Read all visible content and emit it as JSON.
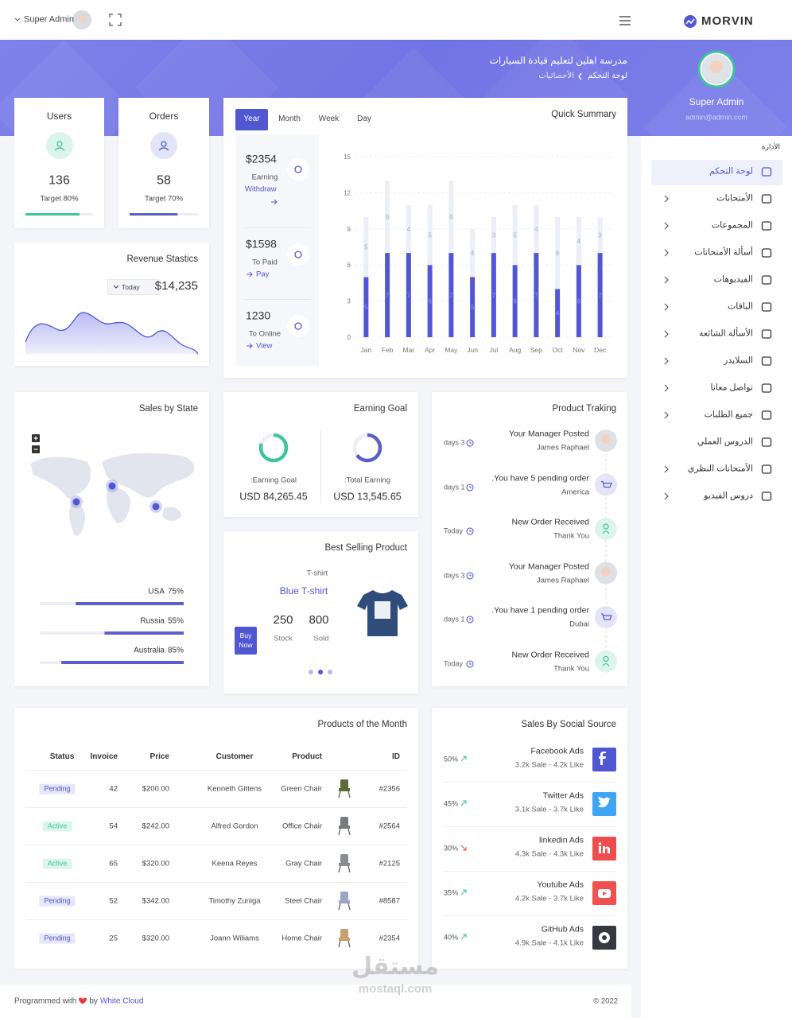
{
  "topbar": {
    "user": "Super Admin",
    "brand": "MORVIN"
  },
  "header": {
    "title": "مدرسة اهلين لتعليم قيادة السيارات",
    "breadcrumb": [
      "لوحة التحكم",
      "الأحصائيات"
    ]
  },
  "sidebar": {
    "name": "Super Admin",
    "email": "admin@admin.com",
    "section": "الأدارة",
    "items": [
      {
        "label": "لوحة التحكم",
        "active": true,
        "submenu": false
      },
      {
        "label": "الأمتحانات",
        "active": false,
        "submenu": true
      },
      {
        "label": "المجموعات",
        "active": false,
        "submenu": true
      },
      {
        "label": "أسألة الأمتحانات",
        "active": false,
        "submenu": true
      },
      {
        "label": "الفيديوهات",
        "active": false,
        "submenu": true
      },
      {
        "label": "الباقات",
        "active": false,
        "submenu": true
      },
      {
        "label": "الأسألة الشائعة",
        "active": false,
        "submenu": true
      },
      {
        "label": "السلايدر",
        "active": false,
        "submenu": true
      },
      {
        "label": "تواصل معانا",
        "active": false,
        "submenu": true
      },
      {
        "label": "جميع الطلبات",
        "active": false,
        "submenu": true
      },
      {
        "label": "الدروس العملي",
        "active": false,
        "submenu": false
      },
      {
        "label": "الأمتحانات النظري",
        "active": false,
        "submenu": true
      },
      {
        "label": "دروس الفيديو",
        "active": false,
        "submenu": true
      }
    ]
  },
  "stat_cards": [
    {
      "label": "Users",
      "value": 136,
      "target": 80,
      "target_label": "Target 80%",
      "color": "#3ec59a",
      "tint": "#dcf5ec"
    },
    {
      "label": "Orders",
      "value": 58,
      "target": 70,
      "target_label": "Target 70%",
      "color": "#5b5fc7",
      "tint": "#e3e4f8"
    }
  ],
  "revenue": {
    "title": "Revenue Stastics",
    "period": "Today",
    "value": 14235,
    "value_label": "$14,235"
  },
  "quick_summary": {
    "title": "Quick Summary",
    "tabs": [
      "Year",
      "Month",
      "Week",
      "Day"
    ],
    "active_tab": 0,
    "stats": [
      {
        "value": 2354,
        "value_label": "$2354",
        "label": "Earning",
        "link": "Withdraw"
      },
      {
        "value": 1598,
        "value_label": "$1598",
        "label": "To Paid",
        "link": "Pay"
      },
      {
        "value": 1230,
        "label": "To Online",
        "link": "View"
      }
    ],
    "chart_data": {
      "type": "bar",
      "stacked": true,
      "categories": [
        "Jan",
        "Feb",
        "Mar",
        "Apr",
        "May",
        "Jun",
        "Jul",
        "Aug",
        "Sep",
        "Oct",
        "Nov",
        "Dec"
      ],
      "series": [
        {
          "color": "#5156d3",
          "values": [
            5,
            7,
            7,
            6,
            7,
            5,
            7,
            6,
            7,
            4,
            6,
            7
          ]
        },
        {
          "color": "#eceef8",
          "values": [
            5,
            6,
            4,
            5,
            6,
            4,
            3,
            5,
            4,
            6,
            4,
            3
          ]
        }
      ],
      "ylim": [
        0,
        15
      ],
      "yticks": [
        0,
        3,
        6,
        9,
        12,
        15
      ],
      "grid": true
    }
  },
  "sales_by_state": {
    "title": "Sales by State",
    "states": [
      {
        "name": "USA",
        "value": 75,
        "value_label": "75%"
      },
      {
        "name": "Russia",
        "value": 55,
        "value_label": "55%"
      },
      {
        "name": "Australia",
        "value": 85,
        "value_label": "85%"
      }
    ]
  },
  "earning_goal": {
    "title": "Earning Goal",
    "goals": [
      {
        "label": ":Earning Goal",
        "value": 84265.45,
        "value_label": "USD 84,265.45",
        "percent": 80,
        "color": "#3ec59a"
      },
      {
        "label": ":Total Earning",
        "value": 13545.65,
        "value_label": "USD 13,545.65",
        "percent": 65,
        "color": "#5b5fc7"
      }
    ]
  },
  "best_selling": {
    "title": "Best Selling Product",
    "category": "T-shirt",
    "name": "Blue T-shirt",
    "stock": 250,
    "stock_label": "Stock",
    "sold": 800,
    "sold_label": "Sold",
    "button": "Buy Now"
  },
  "tracking": {
    "title": "Product Traking",
    "items": [
      {
        "title": "Your Manager Posted",
        "subtitle": "James Raphael",
        "time": "days 3",
        "icon": "avatar"
      },
      {
        "title": "You have 5 pending order.",
        "subtitle": "America",
        "time": "days 1",
        "icon": "cart"
      },
      {
        "title": "New Order Received",
        "subtitle": "Thank You",
        "time": "Today",
        "icon": "user"
      },
      {
        "title": "Your Manager Posted",
        "subtitle": "James Raphael",
        "time": "days 3",
        "icon": "avatar"
      },
      {
        "title": "You have 1 pending order.",
        "subtitle": "Dubai",
        "time": "days 1",
        "icon": "cart"
      },
      {
        "title": "New Order Received",
        "subtitle": "Thank You",
        "time": "Today",
        "icon": "user"
      }
    ]
  },
  "products": {
    "title": "Products of the Month",
    "columns": [
      "Status",
      "Invoice",
      "Price",
      "Customer",
      "Product",
      "ID"
    ],
    "rows": [
      [
        "Pending",
        42,
        "$200.00",
        "Kenneth Gittens",
        "Green Chair",
        "#2356"
      ],
      [
        "Active",
        54,
        "$242.00",
        "Alfred Gordon",
        "Office Chair",
        "#2564"
      ],
      [
        "Active",
        65,
        "$320.00",
        "Keena Reyes",
        "Gray Chair",
        "#2125"
      ],
      [
        "Pending",
        52,
        "$342.00",
        "Timothy Zuniga",
        "Steel Chair",
        "#8587"
      ],
      [
        "Pending",
        25,
        "$320.00",
        "Joann Wiliams",
        "Home Chair",
        "#2354"
      ]
    ]
  },
  "social": {
    "title": "Sales By Social Source",
    "sources": [
      {
        "name": "Facebook Ads",
        "detail": "3.2k Sale - 4.2k Like",
        "percent": "50%",
        "trend": "up",
        "color": "#5156d3",
        "icon": "facebook"
      },
      {
        "name": "Twitter Ads",
        "detail": "3.1k Sale - 3.7k Like",
        "percent": "45%",
        "trend": "up",
        "color": "#3da5f4",
        "icon": "twitter"
      },
      {
        "name": "linkedin Ads",
        "detail": "4.3k Sale - 4.3k Like",
        "percent": "30%",
        "trend": "down",
        "color": "#ef4d4d",
        "icon": "linkedin"
      },
      {
        "name": "Youtube Ads",
        "detail": "4.2k Sale - 3.7k Like",
        "percent": "35%",
        "trend": "up",
        "color": "#f05050",
        "icon": "youtube"
      },
      {
        "name": "GitHub Ads",
        "detail": "4.9k Sale - 4.1k Like",
        "percent": "40%",
        "trend": "up",
        "color": "#343a40",
        "icon": "github"
      }
    ]
  },
  "footer": {
    "credit": "Programmed with",
    "by": "by",
    "author": "White Cloud",
    "copyright": "© 2022"
  },
  "watermark": [
    "مستقل",
    "mostaql.com"
  ]
}
